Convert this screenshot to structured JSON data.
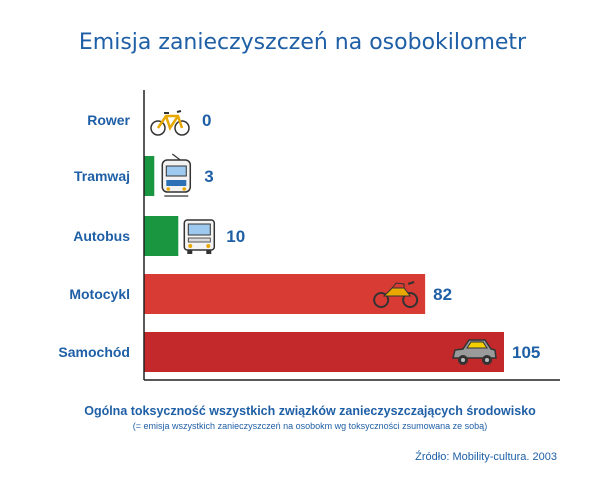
{
  "chart_data": {
    "type": "bar",
    "orientation": "horizontal",
    "title": "Emisja zanieczyszczeń na osobokilometr",
    "categories": [
      "Rower",
      "Tramwaj",
      "Autobus",
      "Motocykl",
      "Samochód"
    ],
    "values": [
      0,
      3,
      10,
      82,
      105
    ],
    "xlim": [
      0,
      105
    ],
    "bar_colors": [
      "#ffffff",
      "#1a9641",
      "#1a9641",
      "#d73b34",
      "#c3282a"
    ],
    "icons": [
      "bicycle-icon",
      "tram-icon",
      "bus-icon",
      "motorcycle-icon",
      "car-icon"
    ],
    "xlabel": "Ogólna toksyczność wszystkich związków zanieczyszczających środowisko",
    "xlabel_note": "(= emisja wszystkich zanieczyszczeń na osobokm wg toksyczności zsumowana ze sobą)",
    "source": "Źródło: Mobility-cultura. 2003",
    "grid": false
  },
  "colors": {
    "text": "#1f5fa6",
    "axis": "#222222"
  }
}
